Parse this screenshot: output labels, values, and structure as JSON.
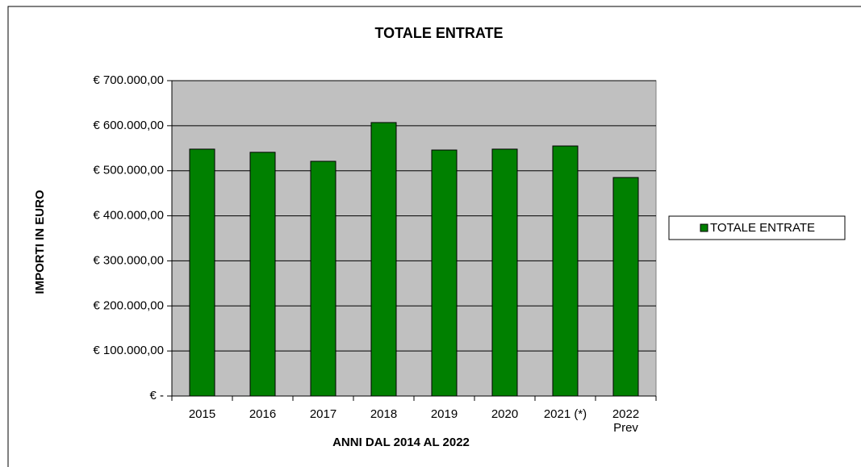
{
  "chart_data": {
    "type": "bar",
    "title": "TOTALE ENTRATE",
    "x_label": "ANNI DAL 2014 AL 2022",
    "y_label": "IMPORTI IN EURO",
    "categories": [
      "2015",
      "2016",
      "2017",
      "2018",
      "2019",
      "2020",
      "2021 (*)",
      "2022\nPrev"
    ],
    "series": [
      {
        "name": "TOTALE ENTRATE",
        "color": "#008000",
        "values": [
          548000,
          541000,
          521000,
          607000,
          546000,
          548000,
          555000,
          485000
        ]
      }
    ],
    "ylim": [
      0,
      700000
    ],
    "yticks": [
      {
        "value": 0,
        "label": "€ -"
      },
      {
        "value": 100000,
        "label": "€ 100.000,00"
      },
      {
        "value": 200000,
        "label": "€ 200.000,00"
      },
      {
        "value": 300000,
        "label": "€ 300.000,00"
      },
      {
        "value": 400000,
        "label": "€ 400.000,00"
      },
      {
        "value": 500000,
        "label": "€ 500.000,00"
      },
      {
        "value": 600000,
        "label": "€ 600.000,00"
      },
      {
        "value": 700000,
        "label": "€ 700.000,00"
      }
    ],
    "grid": true,
    "legend": "right",
    "plot_background": "#c0c0c0"
  }
}
